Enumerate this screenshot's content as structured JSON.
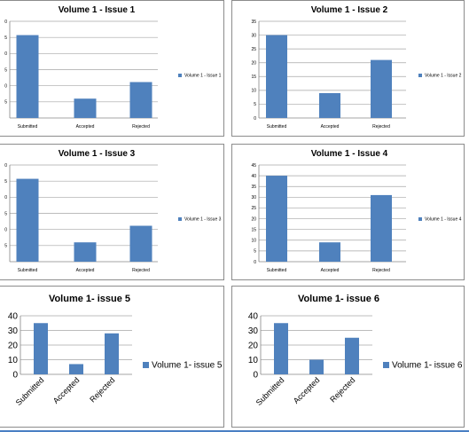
{
  "colors": {
    "bar": "#4f81bd",
    "grid": "#a6a6a6",
    "axis": "#868686",
    "frame": "#8c8c8c",
    "accent": "#4a7fc4"
  },
  "chart_data": [
    {
      "type": "bar",
      "title": "Volume 1 - Issue 1",
      "categories": [
        "Submitted",
        "Accepted",
        "Rejected"
      ],
      "series": [
        {
          "name": "Volume 1 - Issue 1",
          "values": [
            30,
            7,
            13
          ]
        }
      ],
      "ylim": [
        0,
        35
      ],
      "yticks": [
        "",
        "5",
        "0",
        "5",
        "0",
        "5",
        "0"
      ],
      "grid": true,
      "legend": "right"
    },
    {
      "type": "bar",
      "title": "Volume 1 - Issue 2",
      "categories": [
        "Submitted",
        "Accepted",
        "Rejected"
      ],
      "series": [
        {
          "name": "Volume 1 - Issue 2",
          "values": [
            30,
            9,
            21
          ]
        }
      ],
      "ylim": [
        0,
        35
      ],
      "yticks": [
        "0",
        "5",
        "10",
        "15",
        "20",
        "25",
        "30",
        "35"
      ],
      "grid": true,
      "legend": "right"
    },
    {
      "type": "bar",
      "title": "Volume 1 - Issue 3",
      "categories": [
        "Submitted",
        "Accepted",
        "Rejected"
      ],
      "series": [
        {
          "name": "Volume 1 - Issue 3",
          "values": [
            30,
            7,
            13
          ]
        }
      ],
      "ylim": [
        0,
        35
      ],
      "yticks": [
        "",
        "5",
        "0",
        "5",
        "0",
        "5",
        "0"
      ],
      "grid": true,
      "legend": "right"
    },
    {
      "type": "bar",
      "title": "Volume 1 - Issue 4",
      "categories": [
        "Submitted",
        "Accepted",
        "Rejected"
      ],
      "series": [
        {
          "name": "Volume 1 - Issue 4",
          "values": [
            40,
            9,
            31
          ]
        }
      ],
      "ylim": [
        0,
        45
      ],
      "yticks": [
        "0",
        "5",
        "10",
        "15",
        "20",
        "25",
        "30",
        "35",
        "40",
        "45"
      ],
      "grid": true,
      "legend": "right"
    },
    {
      "type": "bar",
      "title": "Volume 1- issue 5",
      "categories": [
        "Submitted",
        "Accepted",
        "Rejected"
      ],
      "series": [
        {
          "name": "Volume 1- issue 5",
          "values": [
            35,
            7,
            28
          ]
        }
      ],
      "ylim": [
        0,
        40
      ],
      "yticks": [
        "0",
        "10",
        "20",
        "30",
        "40"
      ],
      "grid": true,
      "legend": "right"
    },
    {
      "type": "bar",
      "title": "Volume 1- issue 6",
      "categories": [
        "Submitted",
        "Accepted",
        "Rejected"
      ],
      "series": [
        {
          "name": "Volume 1- issue 6",
          "values": [
            35,
            10,
            25
          ]
        }
      ],
      "ylim": [
        0,
        40
      ],
      "yticks": [
        "0",
        "10",
        "20",
        "30",
        "40"
      ],
      "grid": true,
      "legend": "right"
    }
  ]
}
